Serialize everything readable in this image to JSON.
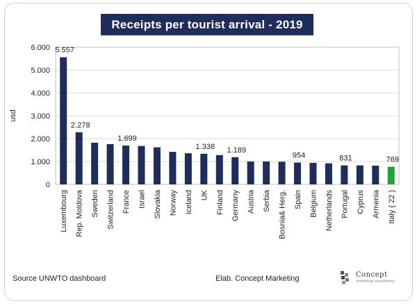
{
  "title": "Receipts per tourist arrival - 2019",
  "footer": {
    "source": "Source UNWTO dashboard",
    "elab": "Elab. Concept  Marketing"
  },
  "logo": {
    "name": "Concept",
    "tagline": "marketing consultancy"
  },
  "chart_data": {
    "type": "bar",
    "title": "Receipts per tourist arrival - 2019",
    "xlabel": "",
    "ylabel": "usd",
    "ylim": [
      0,
      6000
    ],
    "yticks": [
      0,
      1000,
      2000,
      3000,
      4000,
      5000,
      6000
    ],
    "ytick_labels": [
      "0",
      "1.000",
      "2.000",
      "3.000",
      "4.000",
      "5.000",
      "6.000"
    ],
    "grid": true,
    "categories": [
      "Luxembourg",
      "Rep. Moldova",
      "Sweden",
      "Switzerland",
      "France",
      "Israel",
      "Slovakia",
      "Norway",
      "Iceland",
      "UK",
      "Finland",
      "Germany",
      "Austria",
      "Serbia",
      "Bosnia& Herg.",
      "Spain",
      "Belgium",
      "Netherlands",
      "Portugal",
      "Cyprus",
      "Armenia",
      "Italy ( 22 )"
    ],
    "values": [
      5557,
      2278,
      1820,
      1760,
      1699,
      1680,
      1620,
      1420,
      1360,
      1338,
      1280,
      1189,
      1000,
      1000,
      990,
      954,
      940,
      920,
      831,
      830,
      820,
      769
    ],
    "bar_colors": [
      "#1f2d5a",
      "#1f2d5a",
      "#1f2d5a",
      "#1f2d5a",
      "#1f2d5a",
      "#1f2d5a",
      "#1f2d5a",
      "#1f2d5a",
      "#1f2d5a",
      "#1f2d5a",
      "#1f2d5a",
      "#1f2d5a",
      "#1f2d5a",
      "#1f2d5a",
      "#1f2d5a",
      "#1f2d5a",
      "#1f2d5a",
      "#1f2d5a",
      "#1f2d5a",
      "#1f2d5a",
      "#1f2d5a",
      "#1fa33a"
    ],
    "data_labels": [
      {
        "index": 0,
        "text": "5.557"
      },
      {
        "index": 1,
        "text": "2.278"
      },
      {
        "index": 4,
        "text": "1.699"
      },
      {
        "index": 9,
        "text": "1.338"
      },
      {
        "index": 11,
        "text": "1.189"
      },
      {
        "index": 15,
        "text": "954"
      },
      {
        "index": 18,
        "text": "831"
      },
      {
        "index": 21,
        "text": "769"
      }
    ]
  }
}
